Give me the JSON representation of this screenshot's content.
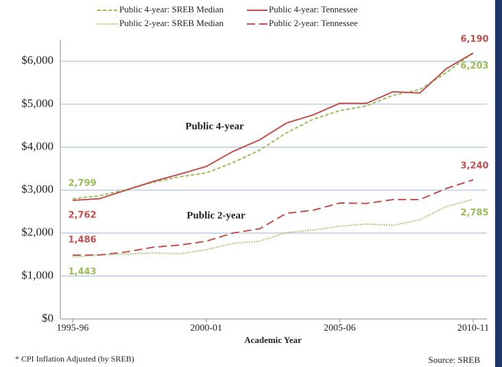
{
  "chart_data": {
    "type": "line",
    "x_label": "Academic Year",
    "annotations": [
      "Public 4-year",
      "Public 2-year"
    ],
    "footnote": "* CPI Inflation Adjusted (by SREB)",
    "source": "Source: SREB",
    "categories": [
      "1995-96",
      null,
      null,
      null,
      null,
      "2000-01",
      null,
      null,
      null,
      null,
      "2005-06",
      null,
      null,
      null,
      null,
      "2010-11"
    ],
    "ylim": [
      0,
      6500
    ],
    "yticks": [
      {
        "value": 0,
        "label": "$0"
      },
      {
        "value": 1000,
        "label": "$1,000"
      },
      {
        "value": 2000,
        "label": "$2,000"
      },
      {
        "value": 3000,
        "label": "$3,000"
      },
      {
        "value": 4000,
        "label": "$4,000"
      },
      {
        "value": 5000,
        "label": "$5,000"
      },
      {
        "value": 6000,
        "label": "$6,000"
      }
    ],
    "grid": true,
    "series": [
      {
        "name": "Public 4-year: SREB Median",
        "color": "#9bbb59",
        "dash": "dashed",
        "values": [
          2799,
          2870,
          3010,
          3180,
          3310,
          3400,
          3640,
          3930,
          4330,
          4650,
          4850,
          4960,
          5210,
          5340,
          5740,
          6203
        ],
        "value_labels": [
          "2,799",
          null,
          null,
          null,
          null,
          null,
          null,
          null,
          null,
          null,
          null,
          null,
          null,
          null,
          null,
          "6,203"
        ]
      },
      {
        "name": "Public 4-year: Tennessee",
        "color": "#c0504d",
        "dash": "solid",
        "values": [
          2762,
          2800,
          3000,
          3200,
          3370,
          3550,
          3900,
          4170,
          4560,
          4750,
          5020,
          5020,
          5290,
          5260,
          5830,
          6190
        ],
        "value_labels": [
          "2,762",
          null,
          null,
          null,
          null,
          null,
          null,
          null,
          null,
          null,
          null,
          null,
          null,
          null,
          null,
          "6,190"
        ]
      },
      {
        "name": "Public 2-year: SREB Median",
        "color": "#9bbb59",
        "dash": "dotted",
        "values": [
          1443,
          1490,
          1510,
          1540,
          1520,
          1610,
          1760,
          1810,
          2010,
          2070,
          2160,
          2210,
          2180,
          2310,
          2620,
          2785
        ],
        "value_labels": [
          "1,443",
          null,
          null,
          null,
          null,
          null,
          null,
          null,
          null,
          null,
          null,
          null,
          null,
          null,
          null,
          "2,785"
        ]
      },
      {
        "name": "Public 2-year: Tennessee",
        "color": "#c0504d",
        "dash": "longdash",
        "values": [
          1486,
          1490,
          1560,
          1670,
          1720,
          1810,
          2000,
          2100,
          2460,
          2530,
          2700,
          2690,
          2780,
          2780,
          3040,
          3240
        ],
        "value_labels": [
          "1,486",
          null,
          null,
          null,
          null,
          null,
          null,
          null,
          null,
          null,
          null,
          null,
          null,
          null,
          null,
          "3,240"
        ]
      }
    ]
  }
}
